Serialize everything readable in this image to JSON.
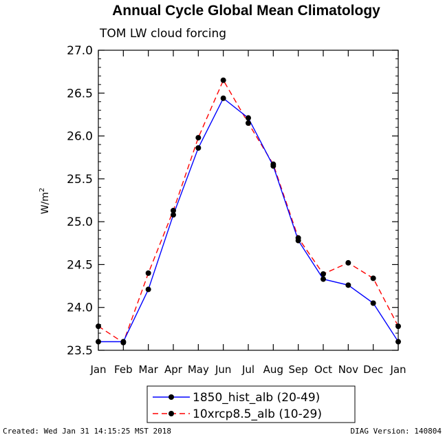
{
  "chart_data": {
    "type": "line",
    "title": "Annual Cycle Global Mean Climatology",
    "subtitle": "TOM LW cloud forcing",
    "ylabel": "W/m",
    "ylabel_superscript": "2",
    "categories": [
      "Jan",
      "Feb",
      "Mar",
      "Apr",
      "May",
      "Jun",
      "Jul",
      "Aug",
      "Sep",
      "Oct",
      "Nov",
      "Dec",
      "Jan"
    ],
    "ylim": [
      23.5,
      27.0
    ],
    "yticks": [
      "23.5",
      "24.0",
      "24.5",
      "25.0",
      "25.5",
      "26.0",
      "26.5",
      "27.0"
    ],
    "yticks_values": [
      23.5,
      24.0,
      24.5,
      25.0,
      25.5,
      26.0,
      26.5,
      27.0
    ],
    "grid": false,
    "legend_position": "bottom-center",
    "series": [
      {
        "name": "1850_hist_alb (20-49)",
        "color": "#0000ff",
        "dash": "solid",
        "values": [
          23.6,
          23.6,
          24.21,
          25.08,
          25.86,
          26.44,
          26.21,
          25.65,
          24.78,
          24.33,
          24.26,
          24.05,
          23.6
        ]
      },
      {
        "name": "10xrcp8.5_alb (10-29)",
        "color": "#ff0000",
        "dash": "dashed",
        "values": [
          23.78,
          23.59,
          24.4,
          25.13,
          25.98,
          26.65,
          26.15,
          25.67,
          24.81,
          24.39,
          24.52,
          24.34,
          23.78
        ]
      }
    ]
  },
  "footer": {
    "created": "Created: Wed Jan 31 14:15:25 MST 2018",
    "version": "DIAG Version: 140804"
  }
}
